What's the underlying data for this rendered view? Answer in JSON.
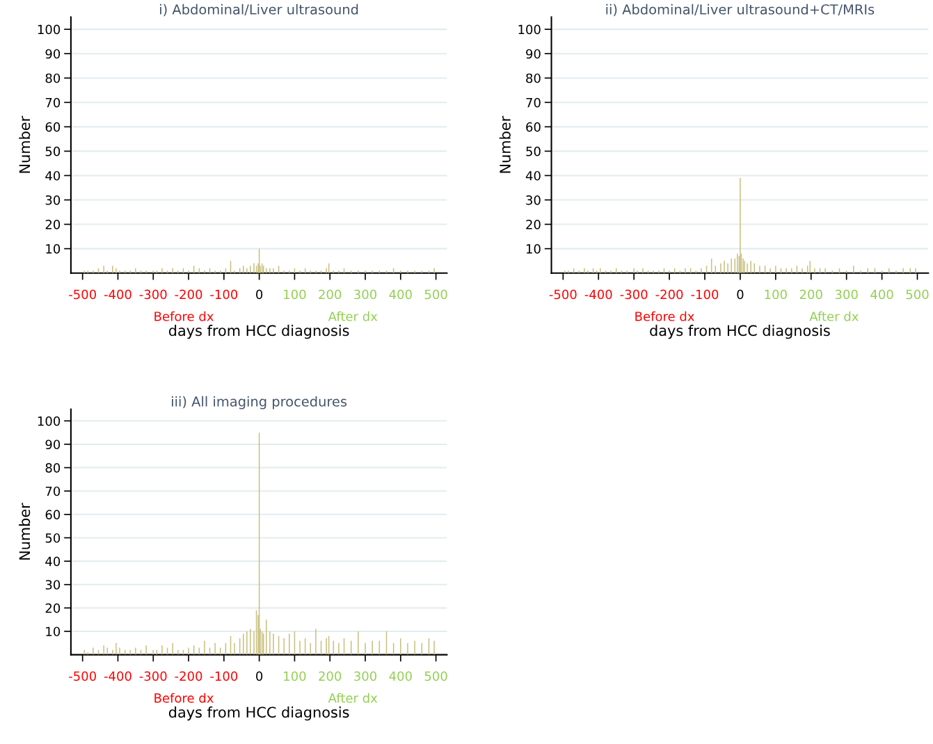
{
  "chart_data": [
    {
      "type": "bar",
      "title": "i) Abdominal/Liver ultrasound",
      "xlabel": "days from HCC diagnosis",
      "ylabel": "Number",
      "annotations": [
        "Before dx",
        "After dx"
      ],
      "grid": "y",
      "xlim": [
        -533,
        531
      ],
      "ylim": [
        0,
        105
      ],
      "xticks": [
        -500,
        -400,
        -300,
        -200,
        -100,
        0,
        100,
        200,
        300,
        400,
        500
      ],
      "yticks": [
        10,
        20,
        30,
        40,
        50,
        60,
        70,
        80,
        90,
        100
      ],
      "x": [
        -495,
        -485,
        -470,
        -455,
        -440,
        -430,
        -415,
        -405,
        -395,
        -380,
        -365,
        -350,
        -335,
        -320,
        -300,
        -290,
        -275,
        -260,
        -245,
        -230,
        -215,
        -200,
        -185,
        -170,
        -155,
        -140,
        -125,
        -110,
        -95,
        -81,
        -70,
        -55,
        -45,
        -35,
        -25,
        -15,
        -8,
        -3,
        0,
        3,
        8,
        12,
        20,
        30,
        40,
        55,
        70,
        85,
        100,
        115,
        130,
        145,
        160,
        175,
        190,
        197,
        210,
        225,
        240,
        260,
        280,
        300,
        320,
        340,
        360,
        380,
        400,
        420,
        440,
        460,
        480,
        495
      ],
      "series": [
        {
          "color": "#c9bf7f",
          "values": [
            1,
            1,
            1,
            2,
            3,
            1,
            3,
            2,
            1,
            1,
            1,
            2,
            1,
            1,
            1,
            1,
            2,
            1,
            2,
            1,
            2,
            1,
            3,
            2,
            1,
            2,
            1,
            1,
            2,
            5,
            1,
            2,
            3,
            2,
            3,
            4,
            3,
            4,
            10,
            3,
            4,
            3,
            2,
            2,
            2,
            3,
            1,
            1,
            2,
            1,
            2,
            1,
            1,
            1,
            2,
            4,
            1,
            1,
            2,
            1,
            1,
            1,
            1,
            1,
            1,
            2,
            1,
            1,
            1,
            1,
            1,
            2
          ]
        }
      ]
    },
    {
      "type": "bar",
      "title": "ii) Abdominal/Liver ultrasound+CT/MRIs",
      "xlabel": "days from HCC diagnosis",
      "ylabel": "Number",
      "annotations": [
        "Before dx",
        "After dx"
      ],
      "grid": "y",
      "xlim": [
        -533,
        531
      ],
      "ylim": [
        0,
        105
      ],
      "xticks": [
        -500,
        -400,
        -300,
        -200,
        -100,
        0,
        100,
        200,
        300,
        400,
        500
      ],
      "yticks": [
        10,
        20,
        30,
        40,
        50,
        60,
        70,
        80,
        90,
        100
      ],
      "x": [
        -495,
        -485,
        -470,
        -455,
        -440,
        -430,
        -415,
        -405,
        -395,
        -380,
        -365,
        -350,
        -335,
        -320,
        -300,
        -290,
        -275,
        -260,
        -245,
        -230,
        -215,
        -200,
        -185,
        -170,
        -155,
        -140,
        -125,
        -110,
        -95,
        -81,
        -70,
        -55,
        -45,
        -35,
        -25,
        -15,
        -8,
        -3,
        0,
        3,
        8,
        12,
        20,
        30,
        40,
        55,
        70,
        85,
        100,
        115,
        130,
        145,
        160,
        175,
        190,
        197,
        210,
        225,
        240,
        260,
        280,
        300,
        320,
        340,
        360,
        380,
        400,
        420,
        440,
        460,
        480,
        495
      ],
      "series": [
        {
          "color": "#c9bf7f",
          "values": [
            1,
            1,
            2,
            1,
            2,
            1,
            2,
            1,
            2,
            1,
            1,
            2,
            1,
            1,
            2,
            1,
            2,
            1,
            1,
            1,
            2,
            1,
            2,
            1,
            2,
            2,
            1,
            2,
            3,
            6,
            3,
            4,
            5,
            4,
            6,
            6,
            8,
            7,
            39,
            8,
            6,
            5,
            4,
            5,
            4,
            3,
            3,
            2,
            3,
            2,
            2,
            2,
            3,
            2,
            3,
            5,
            2,
            2,
            2,
            1,
            2,
            1,
            3,
            1,
            2,
            2,
            1,
            2,
            1,
            2,
            2,
            2
          ]
        }
      ]
    },
    {
      "type": "bar",
      "title": "iii) All imaging procedures",
      "xlabel": "days from HCC diagnosis",
      "ylabel": "Number",
      "annotations": [
        "Before dx",
        "After dx"
      ],
      "grid": "y",
      "xlim": [
        -533,
        531
      ],
      "ylim": [
        0,
        105
      ],
      "xticks": [
        -500,
        -400,
        -300,
        -200,
        -100,
        0,
        100,
        200,
        300,
        400,
        500
      ],
      "yticks": [
        10,
        20,
        30,
        40,
        50,
        60,
        70,
        80,
        90,
        100
      ],
      "x": [
        -495,
        -485,
        -470,
        -455,
        -440,
        -430,
        -415,
        -405,
        -395,
        -380,
        -365,
        -350,
        -335,
        -320,
        -300,
        -290,
        -275,
        -260,
        -245,
        -230,
        -215,
        -200,
        -185,
        -170,
        -155,
        -140,
        -125,
        -110,
        -95,
        -81,
        -70,
        -55,
        -45,
        -35,
        -25,
        -15,
        -8,
        -3,
        0,
        3,
        8,
        12,
        20,
        30,
        40,
        55,
        70,
        85,
        100,
        115,
        130,
        145,
        160,
        175,
        190,
        197,
        210,
        225,
        240,
        260,
        280,
        300,
        320,
        340,
        360,
        380,
        400,
        420,
        440,
        460,
        480,
        495
      ],
      "series": [
        {
          "color": "#c9bf7f",
          "values": [
            2,
            1,
            3,
            2,
            4,
            3,
            2,
            5,
            3,
            2,
            2,
            3,
            2,
            4,
            2,
            2,
            4,
            3,
            5,
            2,
            2,
            3,
            4,
            3,
            6,
            3,
            5,
            3,
            5,
            8,
            5,
            7,
            9,
            10,
            11,
            10,
            19,
            17,
            95,
            11,
            10,
            9,
            15,
            10,
            9,
            8,
            7,
            9,
            10,
            6,
            7,
            5,
            11,
            6,
            7,
            8,
            6,
            5,
            7,
            6,
            10,
            5,
            6,
            6,
            10,
            5,
            7,
            5,
            6,
            5,
            7,
            6
          ]
        }
      ]
    }
  ]
}
